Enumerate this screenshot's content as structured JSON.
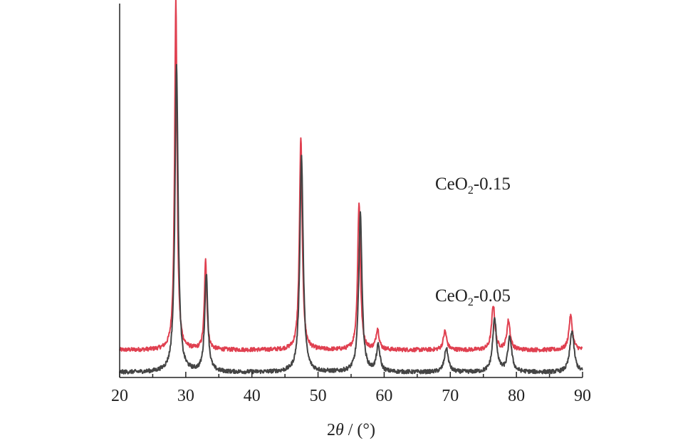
{
  "chart_data": {
    "type": "line",
    "xlabel_num": "2",
    "xlabel_var": "θ",
    "xlabel_rest": " / (°)",
    "ylabel": "",
    "xlim": [
      20,
      90
    ],
    "xticks": [
      20,
      30,
      40,
      50,
      60,
      70,
      80,
      90
    ],
    "xtick_labels": [
      "20",
      "30",
      "40",
      "50",
      "60",
      "70",
      "80",
      "90"
    ],
    "y_ticks_shown": false,
    "grid": false,
    "legend": "none",
    "series": [
      {
        "name_main": "CeO",
        "name_sub": "2",
        "name_rest": "-0.15",
        "color": "#e04050",
        "baseline": 0.8,
        "peaks": [
          {
            "x": 28.5,
            "height": 10.2,
            "width": 0.22
          },
          {
            "x": 33.0,
            "height": 2.6,
            "width": 0.22
          },
          {
            "x": 47.4,
            "height": 6.2,
            "width": 0.25
          },
          {
            "x": 56.2,
            "height": 4.3,
            "width": 0.25
          },
          {
            "x": 59.0,
            "height": 0.6,
            "width": 0.28
          },
          {
            "x": 69.2,
            "height": 0.55,
            "width": 0.3
          },
          {
            "x": 76.5,
            "height": 1.3,
            "width": 0.3
          },
          {
            "x": 78.8,
            "height": 0.85,
            "width": 0.3
          },
          {
            "x": 88.2,
            "height": 1.0,
            "width": 0.32
          }
        ]
      },
      {
        "name_main": "CeO",
        "name_sub": "2",
        "name_rest": "-0.05",
        "color": "#444444",
        "baseline": 0.15,
        "peaks": [
          {
            "x": 28.6,
            "height": 9.0,
            "width": 0.28
          },
          {
            "x": 33.1,
            "height": 2.85,
            "width": 0.28
          },
          {
            "x": 47.5,
            "height": 6.3,
            "width": 0.3
          },
          {
            "x": 56.4,
            "height": 4.6,
            "width": 0.3
          },
          {
            "x": 59.1,
            "height": 0.75,
            "width": 0.32
          },
          {
            "x": 69.4,
            "height": 0.7,
            "width": 0.35
          },
          {
            "x": 76.7,
            "height": 1.55,
            "width": 0.35
          },
          {
            "x": 79.0,
            "height": 1.0,
            "width": 0.35
          },
          {
            "x": 88.4,
            "height": 1.2,
            "width": 0.38
          }
        ]
      }
    ]
  }
}
